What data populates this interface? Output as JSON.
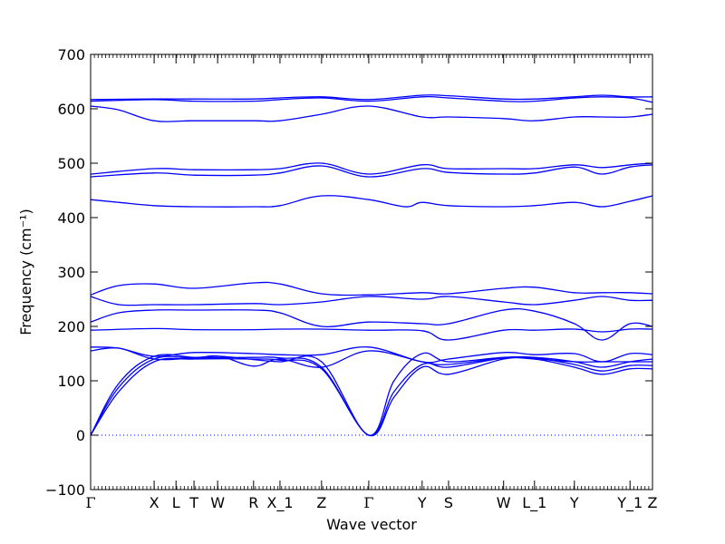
{
  "chart_data": {
    "type": "line",
    "title": "",
    "xlabel": "Wave vector",
    "ylabel": "Frequency (cm⁻¹)",
    "ylim": [
      -100,
      700
    ],
    "yticks": [
      -100,
      0,
      100,
      200,
      300,
      400,
      500,
      600,
      700
    ],
    "xlim": [
      0,
      1
    ],
    "high_symmetry_points": [
      {
        "label": "Γ",
        "x": 0.0
      },
      {
        "label": "X",
        "x": 0.113
      },
      {
        "label": "L",
        "x": 0.152
      },
      {
        "label": "T",
        "x": 0.184
      },
      {
        "label": "W",
        "x": 0.226
      },
      {
        "label": "R",
        "x": 0.29
      },
      {
        "label": "X_1",
        "x": 0.337
      },
      {
        "label": "Z",
        "x": 0.411
      },
      {
        "label": "Γ",
        "x": 0.495
      },
      {
        "label": "Y",
        "x": 0.59
      },
      {
        "label": "S",
        "x": 0.637
      },
      {
        "label": "W",
        "x": 0.735
      },
      {
        "label": "L_1",
        "x": 0.79
      },
      {
        "label": "Y",
        "x": 0.861
      },
      {
        "label": "Y_1",
        "x": 0.96
      },
      {
        "label": "Z",
        "x": 1.0
      }
    ],
    "zero_line": 0,
    "series_color": "#0000ff",
    "series": [
      {
        "points": [
          [
            0,
            0
          ],
          [
            0.05,
            80
          ],
          [
            0.113,
            135
          ],
          [
            0.184,
            140
          ],
          [
            0.29,
            140
          ],
          [
            0.337,
            138
          ],
          [
            0.411,
            122
          ],
          [
            0.495,
            0
          ],
          [
            0.54,
            70
          ],
          [
            0.59,
            125
          ],
          [
            0.637,
            112
          ],
          [
            0.735,
            140
          ],
          [
            0.79,
            140
          ],
          [
            0.861,
            125
          ],
          [
            0.91,
            112
          ],
          [
            0.96,
            122
          ],
          [
            1,
            122
          ]
        ]
      },
      {
        "points": [
          [
            0,
            0
          ],
          [
            0.05,
            88
          ],
          [
            0.113,
            140
          ],
          [
            0.184,
            142
          ],
          [
            0.29,
            143
          ],
          [
            0.337,
            142
          ],
          [
            0.411,
            125
          ],
          [
            0.495,
            0
          ],
          [
            0.54,
            80
          ],
          [
            0.59,
            130
          ],
          [
            0.637,
            125
          ],
          [
            0.735,
            142
          ],
          [
            0.79,
            142
          ],
          [
            0.861,
            130
          ],
          [
            0.91,
            118
          ],
          [
            0.96,
            128
          ],
          [
            1,
            128
          ]
        ]
      },
      {
        "points": [
          [
            0,
            0
          ],
          [
            0.05,
            95
          ],
          [
            0.113,
            145
          ],
          [
            0.184,
            143
          ],
          [
            0.23,
            145
          ],
          [
            0.28,
            140
          ],
          [
            0.337,
            135
          ],
          [
            0.411,
            135
          ],
          [
            0.495,
            0
          ],
          [
            0.54,
            100
          ],
          [
            0.59,
            150
          ],
          [
            0.637,
            135
          ],
          [
            0.735,
            143
          ],
          [
            0.79,
            143
          ],
          [
            0.861,
            135
          ],
          [
            0.91,
            125
          ],
          [
            0.96,
            135
          ],
          [
            1,
            140
          ]
        ]
      },
      {
        "points": [
          [
            0,
            155
          ],
          [
            0.05,
            160
          ],
          [
            0.113,
            140
          ],
          [
            0.184,
            142
          ],
          [
            0.23,
            145
          ],
          [
            0.29,
            127
          ],
          [
            0.337,
            140
          ],
          [
            0.411,
            125
          ],
          [
            0.495,
            155
          ],
          [
            0.59,
            135
          ],
          [
            0.637,
            130
          ],
          [
            0.735,
            142
          ],
          [
            0.79,
            140
          ],
          [
            0.861,
            135
          ],
          [
            0.91,
            135
          ],
          [
            0.96,
            135
          ],
          [
            1,
            135
          ]
        ]
      },
      {
        "points": [
          [
            0,
            162
          ],
          [
            0.05,
            160
          ],
          [
            0.113,
            145
          ],
          [
            0.184,
            152
          ],
          [
            0.29,
            150
          ],
          [
            0.337,
            148
          ],
          [
            0.411,
            148
          ],
          [
            0.495,
            162
          ],
          [
            0.59,
            135
          ],
          [
            0.637,
            140
          ],
          [
            0.735,
            152
          ],
          [
            0.79,
            148
          ],
          [
            0.861,
            150
          ],
          [
            0.91,
            135
          ],
          [
            0.96,
            150
          ],
          [
            1,
            148
          ]
        ]
      },
      {
        "points": [
          [
            0,
            193
          ],
          [
            0.113,
            196
          ],
          [
            0.184,
            194
          ],
          [
            0.29,
            194
          ],
          [
            0.337,
            195
          ],
          [
            0.411,
            195
          ],
          [
            0.495,
            193
          ],
          [
            0.59,
            192
          ],
          [
            0.637,
            175
          ],
          [
            0.735,
            193
          ],
          [
            0.79,
            193
          ],
          [
            0.861,
            195
          ],
          [
            0.91,
            190
          ],
          [
            0.96,
            195
          ],
          [
            1,
            195
          ]
        ]
      },
      {
        "points": [
          [
            0,
            208
          ],
          [
            0.05,
            225
          ],
          [
            0.113,
            230
          ],
          [
            0.184,
            230
          ],
          [
            0.29,
            230
          ],
          [
            0.337,
            225
          ],
          [
            0.411,
            200
          ],
          [
            0.495,
            208
          ],
          [
            0.59,
            205
          ],
          [
            0.637,
            205
          ],
          [
            0.735,
            230
          ],
          [
            0.79,
            228
          ],
          [
            0.861,
            205
          ],
          [
            0.91,
            175
          ],
          [
            0.96,
            205
          ],
          [
            1,
            200
          ]
        ]
      },
      {
        "points": [
          [
            0,
            255
          ],
          [
            0.05,
            240
          ],
          [
            0.113,
            240
          ],
          [
            0.184,
            240
          ],
          [
            0.29,
            242
          ],
          [
            0.337,
            240
          ],
          [
            0.411,
            245
          ],
          [
            0.495,
            255
          ],
          [
            0.59,
            250
          ],
          [
            0.637,
            255
          ],
          [
            0.735,
            245
          ],
          [
            0.79,
            240
          ],
          [
            0.861,
            248
          ],
          [
            0.91,
            255
          ],
          [
            0.96,
            248
          ],
          [
            1,
            248
          ]
        ]
      },
      {
        "points": [
          [
            0,
            258
          ],
          [
            0.05,
            275
          ],
          [
            0.113,
            278
          ],
          [
            0.184,
            270
          ],
          [
            0.29,
            280
          ],
          [
            0.337,
            278
          ],
          [
            0.411,
            260
          ],
          [
            0.495,
            258
          ],
          [
            0.59,
            262
          ],
          [
            0.637,
            260
          ],
          [
            0.735,
            270
          ],
          [
            0.79,
            272
          ],
          [
            0.861,
            262
          ],
          [
            0.91,
            262
          ],
          [
            0.96,
            262
          ],
          [
            1,
            260
          ]
        ]
      },
      {
        "points": [
          [
            0,
            433
          ],
          [
            0.05,
            428
          ],
          [
            0.113,
            422
          ],
          [
            0.184,
            420
          ],
          [
            0.29,
            420
          ],
          [
            0.337,
            422
          ],
          [
            0.411,
            440
          ],
          [
            0.495,
            433
          ],
          [
            0.56,
            420
          ],
          [
            0.59,
            428
          ],
          [
            0.637,
            422
          ],
          [
            0.735,
            420
          ],
          [
            0.79,
            422
          ],
          [
            0.861,
            428
          ],
          [
            0.91,
            420
          ],
          [
            0.96,
            430
          ],
          [
            1,
            440
          ]
        ]
      },
      {
        "points": [
          [
            0,
            475
          ],
          [
            0.113,
            482
          ],
          [
            0.184,
            478
          ],
          [
            0.29,
            478
          ],
          [
            0.337,
            482
          ],
          [
            0.411,
            495
          ],
          [
            0.495,
            475
          ],
          [
            0.59,
            490
          ],
          [
            0.637,
            483
          ],
          [
            0.735,
            480
          ],
          [
            0.79,
            482
          ],
          [
            0.861,
            493
          ],
          [
            0.91,
            480
          ],
          [
            0.96,
            493
          ],
          [
            1,
            497
          ]
        ]
      },
      {
        "points": [
          [
            0,
            480
          ],
          [
            0.113,
            490
          ],
          [
            0.184,
            488
          ],
          [
            0.29,
            488
          ],
          [
            0.337,
            490
          ],
          [
            0.411,
            500
          ],
          [
            0.495,
            480
          ],
          [
            0.59,
            497
          ],
          [
            0.637,
            490
          ],
          [
            0.735,
            490
          ],
          [
            0.79,
            490
          ],
          [
            0.861,
            497
          ],
          [
            0.91,
            492
          ],
          [
            0.96,
            497
          ],
          [
            1,
            500
          ]
        ]
      },
      {
        "points": [
          [
            0,
            605
          ],
          [
            0.05,
            598
          ],
          [
            0.113,
            578
          ],
          [
            0.184,
            578
          ],
          [
            0.29,
            578
          ],
          [
            0.337,
            578
          ],
          [
            0.411,
            590
          ],
          [
            0.495,
            605
          ],
          [
            0.59,
            585
          ],
          [
            0.637,
            585
          ],
          [
            0.735,
            582
          ],
          [
            0.79,
            578
          ],
          [
            0.861,
            585
          ],
          [
            0.91,
            585
          ],
          [
            0.96,
            585
          ],
          [
            1,
            590
          ]
        ]
      },
      {
        "points": [
          [
            0,
            614
          ],
          [
            0.113,
            617
          ],
          [
            0.184,
            614
          ],
          [
            0.29,
            614
          ],
          [
            0.337,
            617
          ],
          [
            0.411,
            620
          ],
          [
            0.495,
            614
          ],
          [
            0.59,
            622
          ],
          [
            0.637,
            620
          ],
          [
            0.735,
            614
          ],
          [
            0.79,
            614
          ],
          [
            0.861,
            620
          ],
          [
            0.91,
            622
          ],
          [
            0.96,
            620
          ],
          [
            1,
            612
          ]
        ]
      },
      {
        "points": [
          [
            0,
            617
          ],
          [
            0.113,
            618
          ],
          [
            0.184,
            618
          ],
          [
            0.29,
            618
          ],
          [
            0.337,
            620
          ],
          [
            0.411,
            622
          ],
          [
            0.495,
            617
          ],
          [
            0.59,
            625
          ],
          [
            0.637,
            624
          ],
          [
            0.735,
            618
          ],
          [
            0.79,
            618
          ],
          [
            0.861,
            622
          ],
          [
            0.91,
            625
          ],
          [
            0.96,
            622
          ],
          [
            1,
            622
          ]
        ]
      }
    ]
  }
}
